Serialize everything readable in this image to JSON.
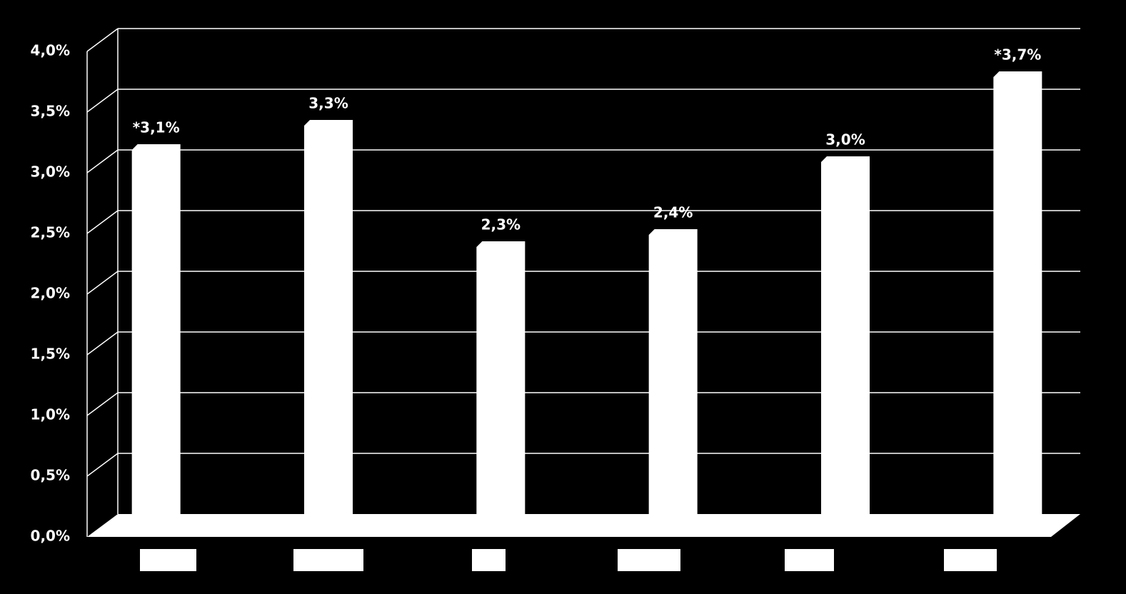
{
  "chart_data": {
    "type": "bar3d",
    "categories": [
      null,
      null,
      null,
      null,
      null,
      null
    ],
    "values": [
      3.1,
      3.3,
      2.3,
      2.4,
      3.0,
      3.7
    ],
    "value_labels": [
      "*3,1%",
      "3,3%",
      "2,3%",
      "2,4%",
      "3,0%",
      "*3,7%"
    ],
    "color": "#ffffff",
    "ylim": [
      0,
      4
    ],
    "yticks": [
      {
        "value": 0,
        "label": "0,0%"
      },
      {
        "value": 0.5,
        "label": "0,5%"
      },
      {
        "value": 1,
        "label": "1,0%"
      },
      {
        "value": 1.5,
        "label": "1,5%"
      },
      {
        "value": 2,
        "label": "2,0%"
      },
      {
        "value": 2.5,
        "label": "2,5%"
      },
      {
        "value": 3,
        "label": "3,0%"
      },
      {
        "value": 3.5,
        "label": "3,5%"
      },
      {
        "value": 4,
        "label": "4,0%"
      }
    ],
    "grid": true
  }
}
